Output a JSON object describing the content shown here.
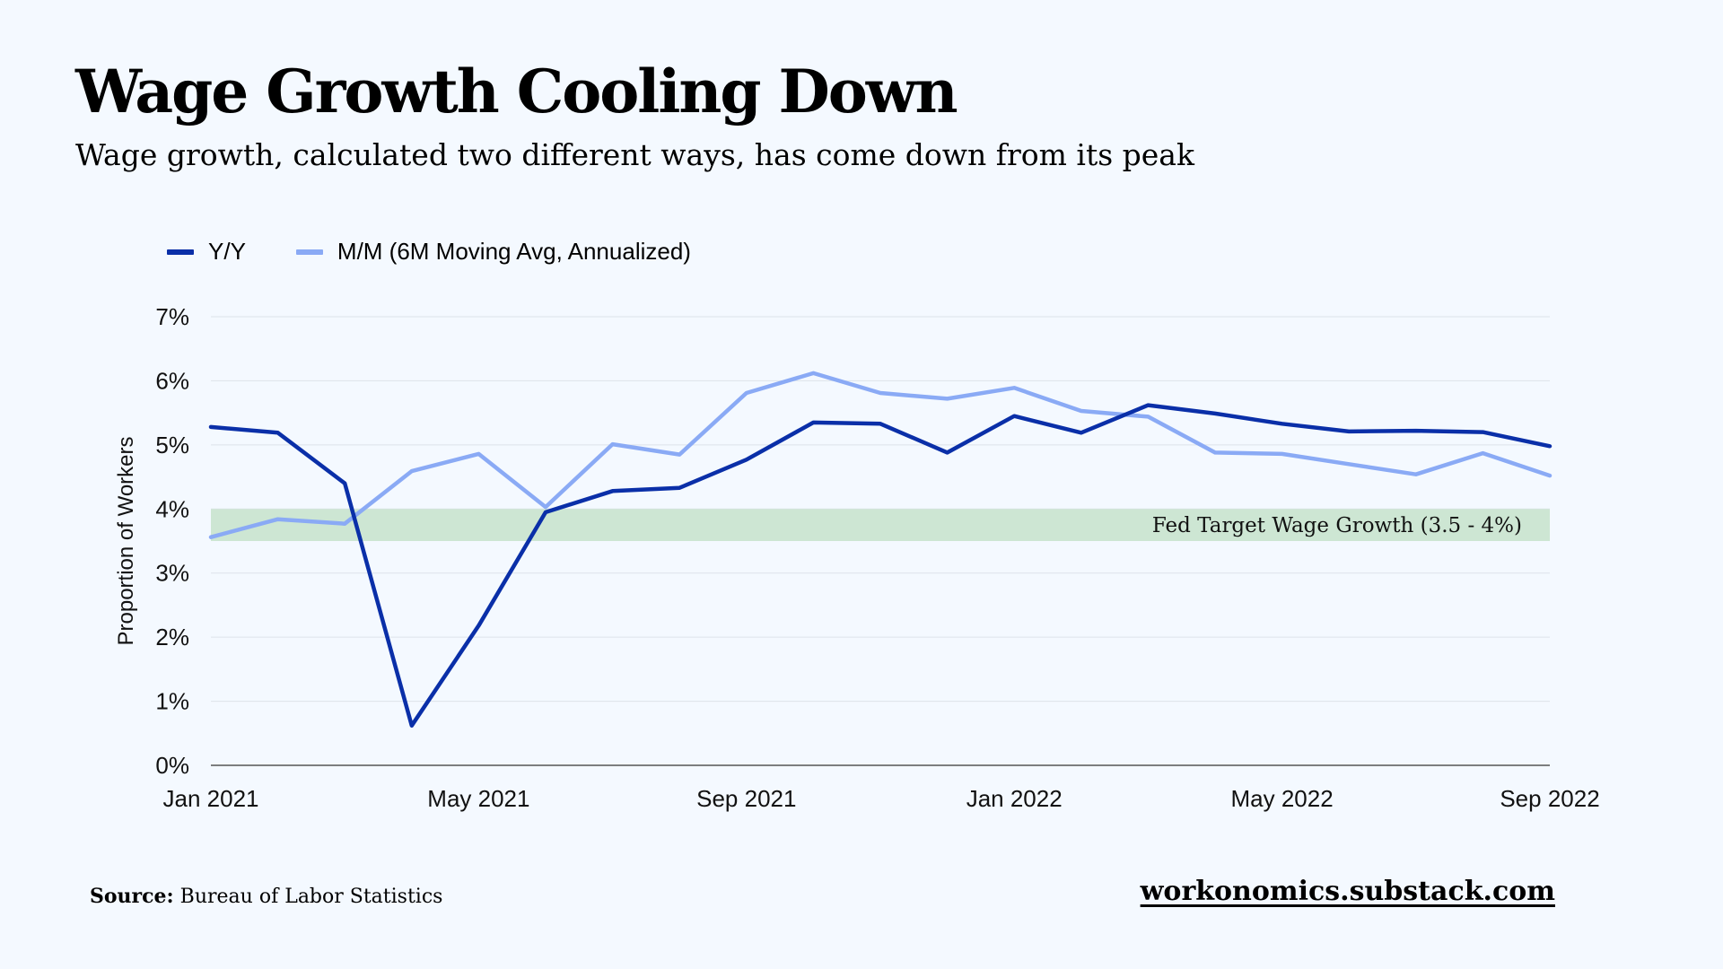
{
  "chart_data": {
    "type": "line",
    "title": "Wage Growth Cooling Down",
    "subtitle": "Wage growth, calculated two different ways, has come down from its peak",
    "ylabel": "Proportion of Workers",
    "xlabel": "",
    "ylim": [
      0,
      7
    ],
    "y_ticks": [
      "0%",
      "1%",
      "2%",
      "3%",
      "4%",
      "5%",
      "6%",
      "7%"
    ],
    "x": [
      "Jan 2021",
      "Feb 2021",
      "Mar 2021",
      "Apr 2021",
      "May 2021",
      "Jun 2021",
      "Jul 2021",
      "Aug 2021",
      "Sep 2021",
      "Oct 2021",
      "Nov 2021",
      "Dec 2021",
      "Jan 2022",
      "Feb 2022",
      "Mar 2022",
      "Apr 2022",
      "May 2022",
      "Jun 2022",
      "Jul 2022",
      "Aug 2022",
      "Sep 2022"
    ],
    "x_tick_labels": [
      "Jan 2021",
      "May 2021",
      "Sep 2021",
      "Jan 2022",
      "May 2022",
      "Sep 2022"
    ],
    "x_tick_indices": [
      0,
      4,
      8,
      12,
      16,
      20
    ],
    "grid": true,
    "legend_position": "top-left",
    "series": [
      {
        "name": "Y/Y",
        "color": "#0a2fa8",
        "values": [
          5.28,
          5.19,
          4.4,
          0.62,
          2.18,
          3.95,
          4.28,
          4.33,
          4.77,
          5.35,
          5.33,
          4.88,
          5.45,
          5.19,
          5.62,
          5.49,
          5.33,
          5.21,
          5.22,
          5.2,
          4.98
        ]
      },
      {
        "name": "M/M (6M Moving Avg, Annualized)",
        "color": "#8aaaf5",
        "values": [
          3.56,
          3.84,
          3.77,
          4.59,
          4.86,
          4.03,
          5.01,
          4.85,
          5.81,
          6.12,
          5.81,
          5.72,
          5.89,
          5.53,
          5.44,
          4.88,
          4.86,
          4.7,
          4.54,
          4.87,
          4.52
        ]
      }
    ],
    "band": {
      "from": 3.5,
      "to": 4.0,
      "label": "Fed Target Wage Growth (3.5 - 4%)",
      "color": "#cde6d3"
    }
  },
  "footer": {
    "source_label": "Source:",
    "source_text": "Bureau of Labor Statistics",
    "site": "workonomics.substack.com"
  }
}
